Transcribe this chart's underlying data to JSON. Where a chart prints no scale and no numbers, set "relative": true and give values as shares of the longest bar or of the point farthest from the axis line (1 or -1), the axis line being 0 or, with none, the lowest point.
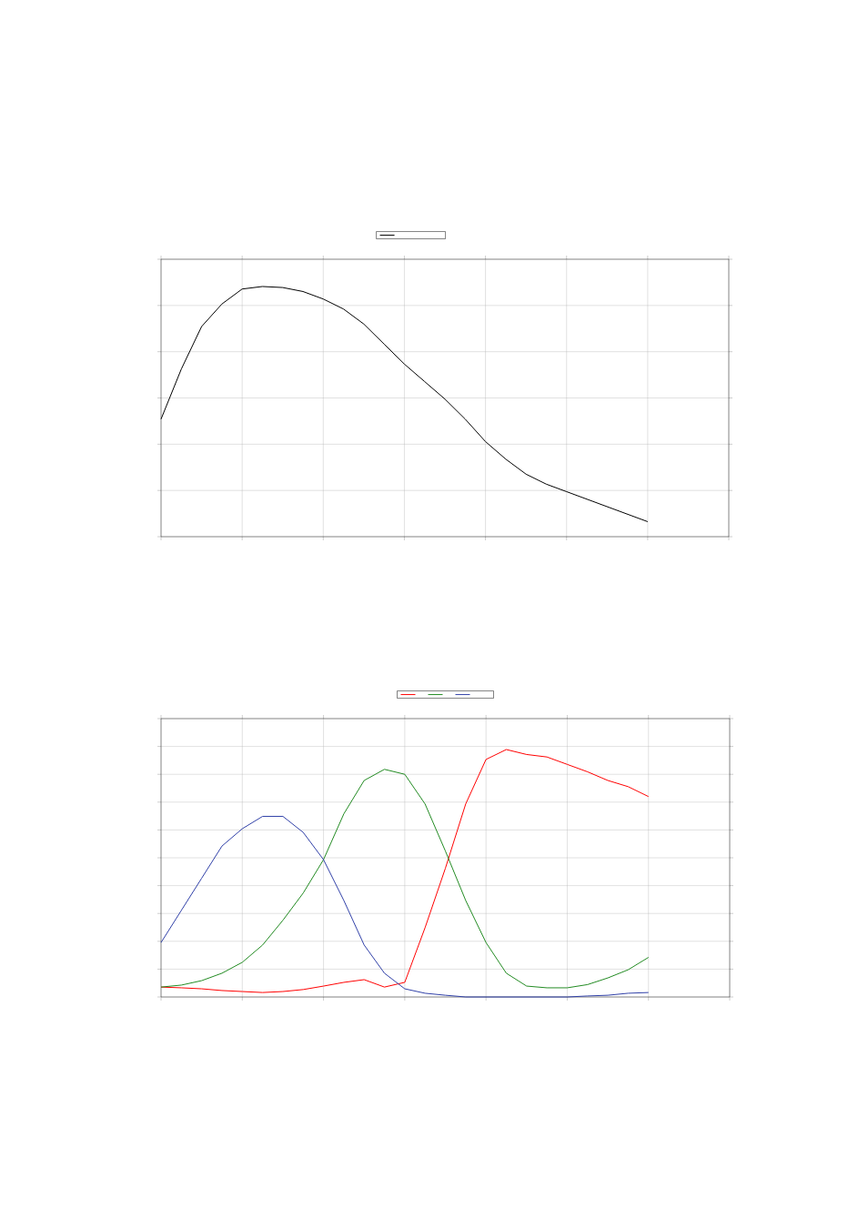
{
  "chart_data": [
    {
      "type": "line",
      "relative": true,
      "grid": true,
      "line_style": "solid",
      "marker": "none",
      "categories": [
        null,
        null,
        null,
        null,
        null,
        null,
        null,
        null,
        null,
        null,
        null,
        null,
        null,
        null,
        null,
        null,
        null,
        null,
        null,
        null,
        null,
        null,
        null,
        null,
        null,
        null,
        null,
        null,
        null
      ],
      "series": [
        {
          "color": "#000000",
          "values": [
            0.47,
            0.67,
            0.84,
            0.93,
            0.99,
            1.0,
            0.996,
            0.98,
            0.95,
            0.91,
            0.85,
            0.77,
            0.69,
            0.62,
            0.55,
            0.47,
            0.38,
            0.31,
            0.25,
            0.21,
            0.18,
            0.15,
            0.12,
            0.09,
            0.06,
            null,
            null,
            null,
            null
          ]
        }
      ]
    },
    {
      "type": "line",
      "relative": true,
      "grid": true,
      "line_style": "solid",
      "marker": "none",
      "categories": [
        null,
        null,
        null,
        null,
        null,
        null,
        null,
        null,
        null,
        null,
        null,
        null,
        null,
        null,
        null,
        null,
        null,
        null,
        null,
        null,
        null,
        null,
        null,
        null,
        null,
        null,
        null,
        null,
        null
      ],
      "series": [
        {
          "color": "#ff0000",
          "values": [
            0.04,
            0.037,
            0.033,
            0.026,
            0.022,
            0.018,
            0.022,
            0.03,
            0.044,
            0.059,
            0.07,
            0.04,
            0.059,
            0.28,
            0.52,
            0.78,
            0.96,
            1.0,
            0.98,
            0.97,
            0.94,
            0.91,
            0.875,
            0.85,
            0.81,
            null,
            null,
            null,
            null
          ]
        },
        {
          "color": "#228b22",
          "values": [
            0.04,
            0.048,
            0.066,
            0.096,
            0.14,
            0.21,
            0.31,
            0.42,
            0.555,
            0.74,
            0.875,
            0.92,
            0.9,
            0.78,
            0.59,
            0.39,
            0.22,
            0.096,
            0.044,
            0.037,
            0.037,
            0.05,
            0.077,
            0.11,
            0.16,
            null,
            null,
            null,
            null
          ]
        },
        {
          "color": "#3040a8",
          "values": [
            0.22,
            0.35,
            0.48,
            0.61,
            0.68,
            0.73,
            0.73,
            0.665,
            0.555,
            0.39,
            0.21,
            0.096,
            0.033,
            0.015,
            0.007,
            0,
            0,
            0,
            0,
            0,
            0,
            0.004,
            0.007,
            0.015,
            0.018,
            null,
            null,
            null,
            null
          ]
        }
      ]
    }
  ]
}
